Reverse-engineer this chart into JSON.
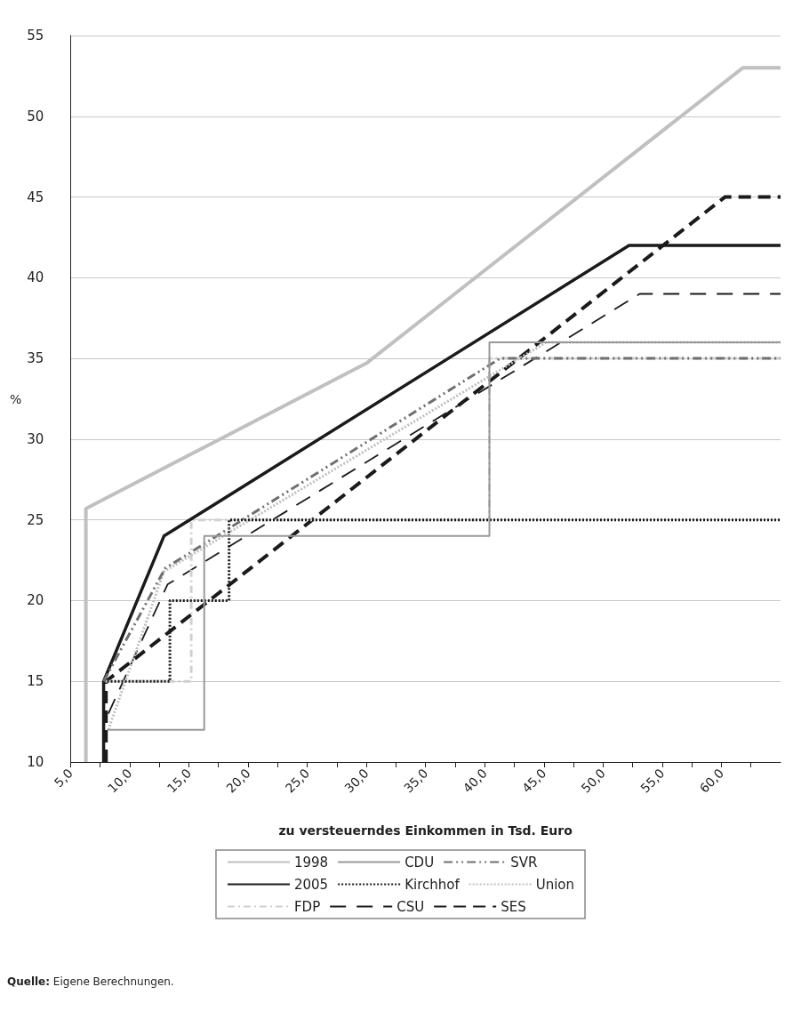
{
  "chart_data": {
    "type": "line",
    "xlabel": "zu versteuerndes Einkommen in Tsd. Euro",
    "ylabel": "%",
    "xlim": [
      5,
      65
    ],
    "ylim": [
      10,
      55
    ],
    "xticks": [
      {
        "value": 5,
        "label": "5,0"
      },
      {
        "value": 7.5,
        "label": null
      },
      {
        "value": 10,
        "label": "10,0"
      },
      {
        "value": 12.5,
        "label": null
      },
      {
        "value": 15,
        "label": "15,0"
      },
      {
        "value": 17.5,
        "label": null
      },
      {
        "value": 20,
        "label": "20,0"
      },
      {
        "value": 22.5,
        "label": null
      },
      {
        "value": 25,
        "label": "25,0"
      },
      {
        "value": 27.5,
        "label": null
      },
      {
        "value": 30,
        "label": "30,0"
      },
      {
        "value": 32.5,
        "label": null
      },
      {
        "value": 35,
        "label": "35,0"
      },
      {
        "value": 37.5,
        "label": null
      },
      {
        "value": 40,
        "label": "40,0"
      },
      {
        "value": 42.5,
        "label": null
      },
      {
        "value": 45,
        "label": "45,0"
      },
      {
        "value": 47.5,
        "label": null
      },
      {
        "value": 50,
        "label": "50,0"
      },
      {
        "value": 52.5,
        "label": null
      },
      {
        "value": 55,
        "label": "55,0"
      },
      {
        "value": 57.5,
        "label": null
      },
      {
        "value": 60,
        "label": "60,0"
      },
      {
        "value": 62.5,
        "label": null
      }
    ],
    "yticks": [
      10,
      15,
      20,
      25,
      30,
      35,
      40,
      45,
      50,
      55
    ],
    "grid": "y",
    "legend": "bottom",
    "marker": "none",
    "series": [
      {
        "name": "1998",
        "color": "#c0c0c0",
        "line_style": "solid",
        "x": [
          6.3,
          6.3,
          30,
          61.8,
          65
        ],
        "values": [
          10,
          25.7,
          34.7,
          53,
          53
        ]
      },
      {
        "name": "CDU",
        "color": "#999999",
        "line_style": "solid",
        "x": [
          8.1,
          16.3,
          16.3,
          40.4,
          40.4,
          65
        ],
        "values": [
          12,
          12,
          24,
          24,
          36,
          36
        ]
      },
      {
        "name": "SVR",
        "color": "#707070",
        "line_style": "dashed",
        "x": [
          7.8,
          13,
          41.3,
          65
        ],
        "values": [
          15,
          22,
          35,
          35
        ]
      },
      {
        "name": "2005",
        "color": "#1a1a1a",
        "line_style": "solid",
        "x": [
          7.8,
          7.8,
          12.9,
          52.2,
          65
        ],
        "values": [
          10,
          15,
          24,
          42,
          42
        ]
      },
      {
        "name": "Kirchhof",
        "color": "#1a1a1a",
        "line_style": "dotted",
        "x": [
          7.8,
          13.4,
          13.4,
          18.4,
          18.4,
          65
        ],
        "values": [
          15,
          15,
          20,
          20,
          25,
          25
        ]
      },
      {
        "name": "Union",
        "color": "#c0c0c0",
        "line_style": "dotted",
        "x": [
          8.2,
          12.9,
          45.2,
          65
        ],
        "values": [
          12,
          21.8,
          36,
          36
        ]
      },
      {
        "name": "FDP",
        "color": "#d0d0d0",
        "line_style": "dashed",
        "x": [
          7.8,
          15.2,
          15.2,
          40.4,
          40.4,
          65
        ],
        "values": [
          15,
          15,
          25,
          25,
          35,
          35
        ]
      },
      {
        "name": "CSU",
        "color": "#1a1a1a",
        "line_style": "dashed",
        "x": [
          8.2,
          13.2,
          53.1,
          65
        ],
        "values": [
          13,
          21,
          39,
          39
        ]
      },
      {
        "name": "SES",
        "color": "#1a1a1a",
        "line_style": "dashed",
        "x": [
          8,
          8,
          60.3,
          65
        ],
        "values": [
          10,
          15,
          45,
          45
        ]
      }
    ],
    "annotations": [
      "Quelle: Eigene Berechnungen."
    ]
  }
}
